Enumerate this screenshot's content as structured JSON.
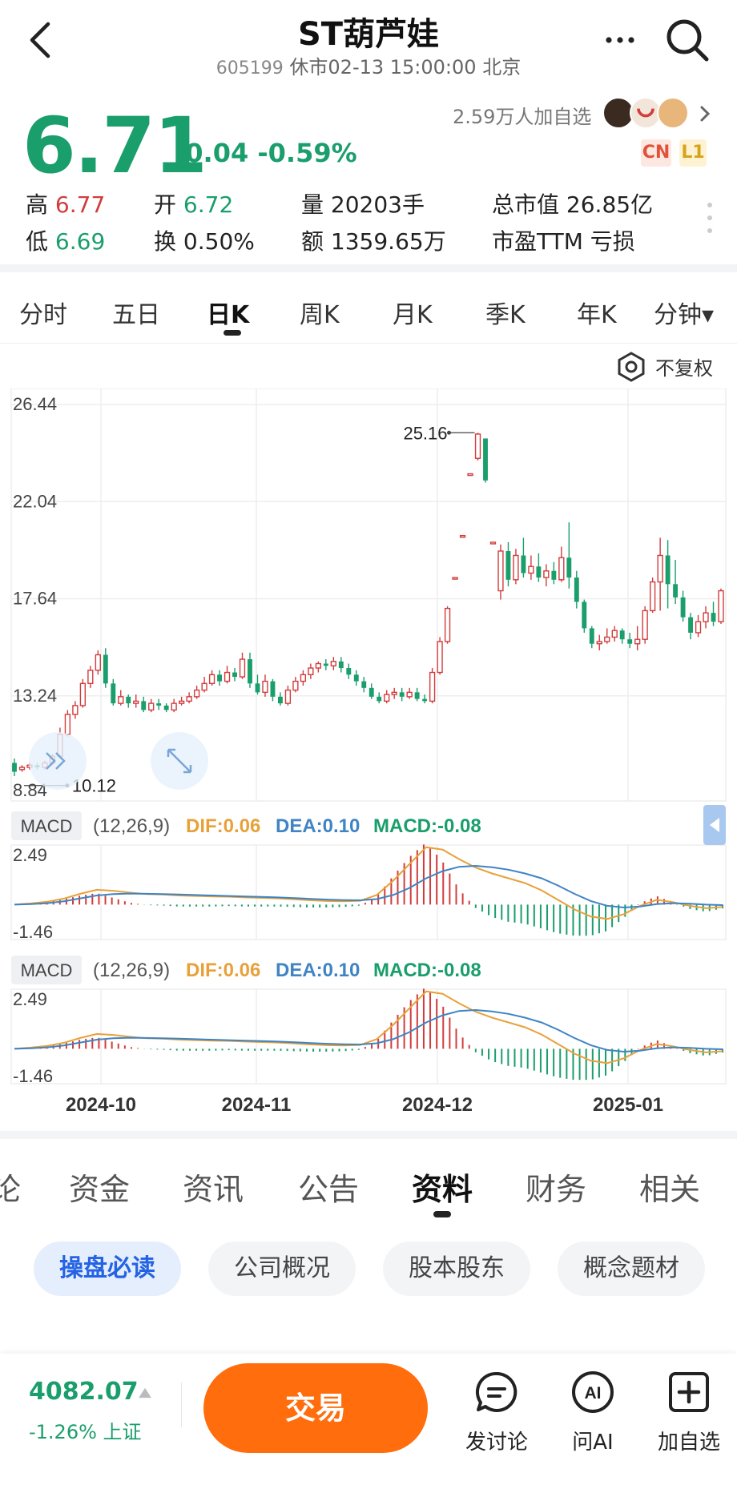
{
  "header": {
    "title": "ST葫芦娃",
    "code": "605199",
    "status": "休市02-13 15:00:00 北京"
  },
  "quote": {
    "price": "6.71",
    "change": "-0.04",
    "change_pct": "-0.59%",
    "followers": "2.59万人加自选",
    "badges": [
      "CN",
      "L1"
    ],
    "stats": {
      "high_label": "高",
      "high": "6.77",
      "low_label": "低",
      "low": "6.69",
      "open_label": "开",
      "open": "6.72",
      "turnover_label": "换",
      "turnover": "0.50%",
      "volume_label": "量",
      "volume": "20203手",
      "amount_label": "额",
      "amount": "1359.65万",
      "mktcap_label": "总市值",
      "mktcap": "26.85亿",
      "pe_label": "市盈TTM",
      "pe": "亏损"
    }
  },
  "period_tabs": [
    "分时",
    "五日",
    "日K",
    "周K",
    "月K",
    "季K",
    "年K",
    "分钟▾"
  ],
  "active_period": "日K",
  "fuquan_label": "不复权",
  "kline": {
    "y_labels": [
      "26.44",
      "22.04",
      "17.64",
      "13.24",
      "8.84"
    ],
    "max_label": "25.16",
    "min_label": "10.12",
    "x_labels": [
      "2024-10",
      "2024-11",
      "2024-12",
      "2025-01"
    ]
  },
  "macd": [
    {
      "name": "MACD",
      "params": "(12,26,9)",
      "dif": "DIF:0.06",
      "dea": "DEA:0.10",
      "macd": "MACD:-0.08",
      "ymax": "2.49",
      "ymin": "-1.46"
    },
    {
      "name": "MACD",
      "params": "(12,26,9)",
      "dif": "DIF:0.06",
      "dea": "DEA:0.10",
      "macd": "MACD:-0.08",
      "ymax": "2.49",
      "ymin": "-1.46"
    }
  ],
  "content_tabs": [
    "论",
    "资金",
    "资讯",
    "公告",
    "资料",
    "财务",
    "相关"
  ],
  "active_content_tab": "资料",
  "pills": [
    "操盘必读",
    "公司概况",
    "股本股东",
    "概念题材"
  ],
  "bottom": {
    "index_value": "4082.07",
    "index_change": "-1.26% 上证",
    "trade_label": "交易",
    "discuss_label": "发讨论",
    "ai_label": "问AI",
    "add_label": "加自选"
  },
  "colors": {
    "up": "#d23c3c",
    "down": "#1a9e6c",
    "accent": "#ff6d0d",
    "dif": "#e8a13a",
    "dea": "#3f84c4"
  },
  "chart_data": {
    "type": "candlestick",
    "x": [
      "2024-10",
      "2024-11",
      "2024-12",
      "2025-01"
    ],
    "ylim": [
      8.84,
      26.44
    ],
    "max": 25.16,
    "min": 10.12,
    "last_close": 6.71
  }
}
